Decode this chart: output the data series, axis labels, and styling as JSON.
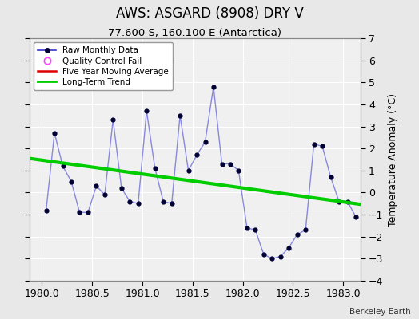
{
  "title": "AWS: ASGARD (8908) DRY V",
  "subtitle": "77.600 S, 160.100 E (Antarctica)",
  "ylabel": "Temperature Anomaly (°C)",
  "watermark": "Berkeley Earth",
  "xlim": [
    1979.875,
    1983.17
  ],
  "ylim": [
    -4,
    7
  ],
  "xticks": [
    1980,
    1980.5,
    1981,
    1981.5,
    1982,
    1982.5,
    1983
  ],
  "yticks": [
    -4,
    -3,
    -2,
    -1,
    0,
    1,
    2,
    3,
    4,
    5,
    6,
    7
  ],
  "raw_x": [
    1980.042,
    1980.125,
    1980.208,
    1980.292,
    1980.375,
    1980.458,
    1980.542,
    1980.625,
    1980.708,
    1980.792,
    1980.875,
    1980.958,
    1981.042,
    1981.125,
    1981.208,
    1981.292,
    1981.375,
    1981.458,
    1981.542,
    1981.625,
    1981.708,
    1981.792,
    1981.875,
    1981.958,
    1982.042,
    1982.125,
    1982.208,
    1982.292,
    1982.375,
    1982.458,
    1982.542,
    1982.625,
    1982.708,
    1982.792,
    1982.875,
    1982.958,
    1983.042,
    1983.125
  ],
  "raw_y": [
    -0.8,
    2.7,
    1.2,
    0.5,
    -0.9,
    -0.9,
    0.3,
    -0.1,
    3.3,
    0.2,
    -0.4,
    -0.5,
    3.7,
    1.1,
    -0.4,
    -0.5,
    3.5,
    1.0,
    1.7,
    2.3,
    4.8,
    1.3,
    1.3,
    1.0,
    -1.6,
    -1.7,
    -2.8,
    -3.0,
    -2.9,
    -2.5,
    -1.9,
    -1.7,
    2.2,
    2.1,
    0.7,
    -0.4,
    -0.4,
    -1.1
  ],
  "trend_x": [
    1979.875,
    1983.2
  ],
  "trend_y": [
    1.55,
    -0.55
  ],
  "line_color": "#3333cc",
  "line_alpha": 0.55,
  "marker_color": "#000033",
  "marker_size": 3.5,
  "trend_color": "#00cc00",
  "trend_linewidth": 3.0,
  "moving_avg_color": "#dd0000",
  "qc_fail_color": "#ff44ff",
  "background_color": "#e8e8e8",
  "plot_bg_color": "#f0f0f0",
  "grid_color": "#ffffff",
  "title_fontsize": 12,
  "subtitle_fontsize": 9.5,
  "tick_fontsize": 9,
  "ylabel_fontsize": 9
}
